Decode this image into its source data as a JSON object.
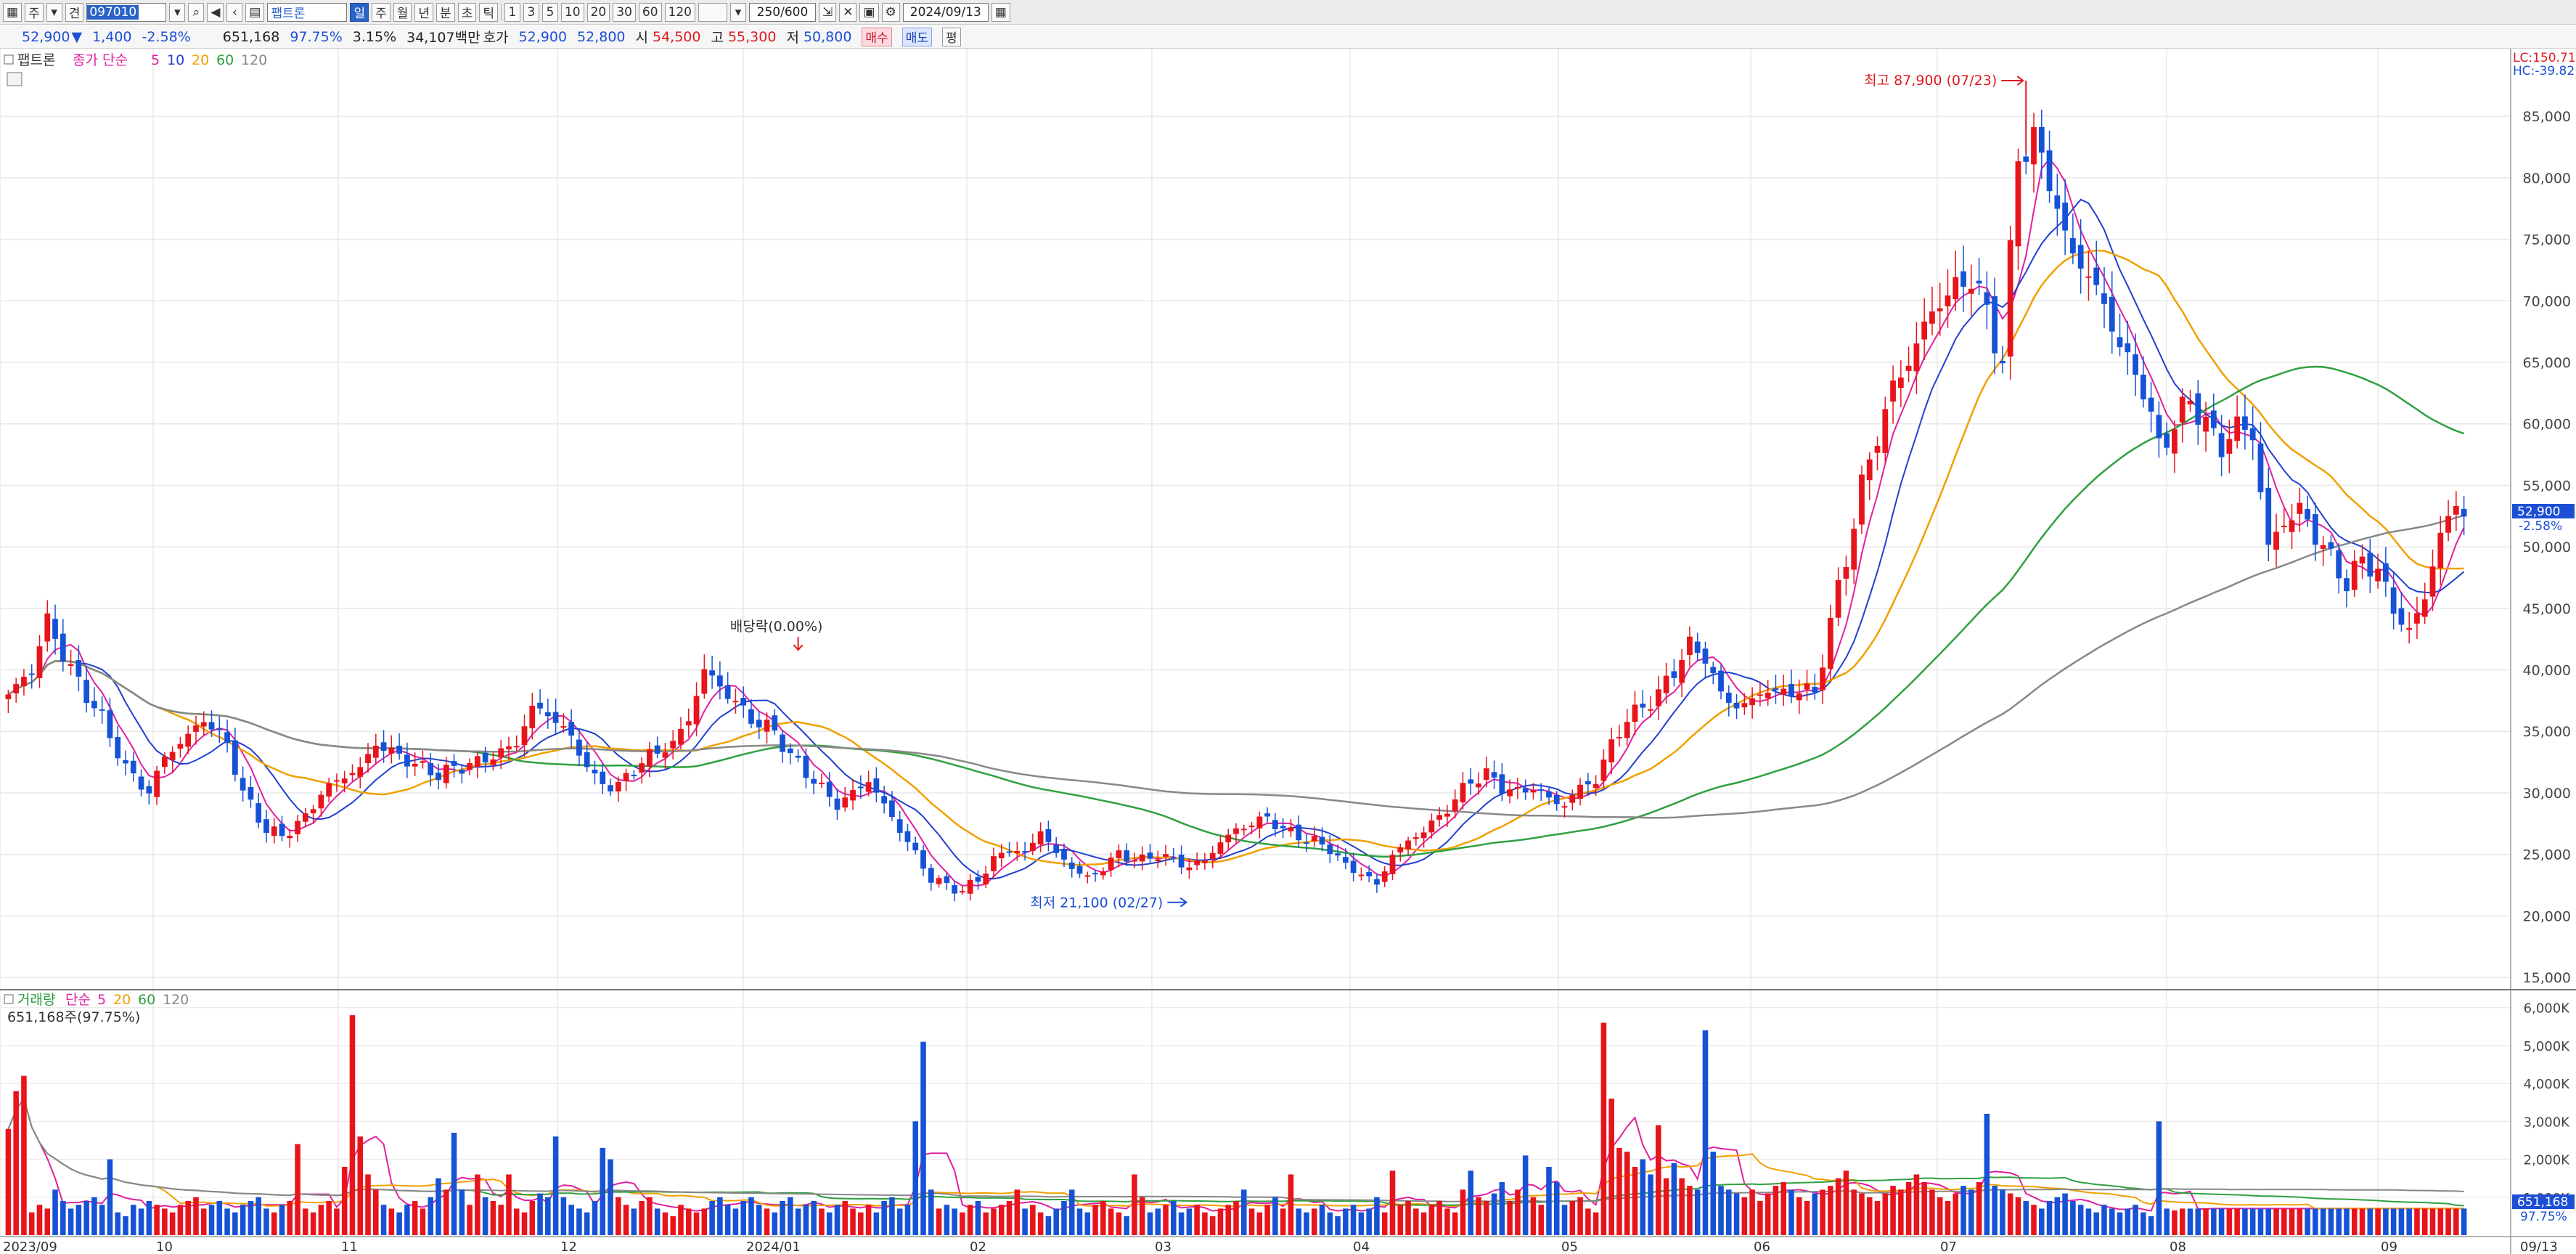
{
  "toolbar": {
    "items_left": [
      "주",
      "견"
    ],
    "code": "097010",
    "name": "팹트론",
    "periods": [
      "일",
      "주",
      "월",
      "년",
      "분",
      "초",
      "틱"
    ],
    "ticks": [
      "1",
      "3",
      "5",
      "10",
      "20",
      "30",
      "60",
      "120"
    ],
    "ratio": "250/600",
    "date": "2024/09/13"
  },
  "info": {
    "price": "52,900",
    "arrow": "▼",
    "change": "1,400",
    "change_pct": "-2.58%",
    "volume": "651,168",
    "vol_ratio": "97.75%",
    "turnover": "3.15%",
    "amount": "34,107백만",
    "quote_label": "호가",
    "ask": "52,900",
    "bid": "52,800",
    "open_label": "시",
    "open": "54,500",
    "high_label": "고",
    "high": "55,300",
    "low_label": "저",
    "low": "50,800",
    "buy_label": "매수",
    "sell_label": "매도",
    "flat_label": "평"
  },
  "chart_data": {
    "type": "candlestick",
    "price_panel": {
      "legend_name": "팹트론",
      "legend_ma_label": "종가 단순",
      "ma_periods": [
        5,
        10,
        20,
        60,
        120
      ],
      "ma_colors": [
        "#e020a0",
        "#2040d0",
        "#f0a000",
        "#30a040",
        "#888888"
      ],
      "y_ticks": [
        15000,
        20000,
        25000,
        30000,
        35000,
        40000,
        45000,
        50000,
        55000,
        60000,
        65000,
        70000,
        75000,
        80000,
        85000
      ],
      "y_tick_labels": [
        "15,000",
        "20,000",
        "25,000",
        "30,000",
        "35,000",
        "40,000",
        "45,000",
        "50,000",
        "55,000",
        "60,000",
        "65,000",
        "70,000",
        "75,000",
        "80,000",
        "85,000"
      ],
      "ylim": [
        14000,
        90500
      ],
      "current_price_label": "52,900",
      "current_pct_label": "-2.58%",
      "lc_label": "LC:150.71",
      "hc_label": "HC:-39.82",
      "annotations": {
        "high": "최고 87,900 (07/23)",
        "low": "최저 21,100 (02/27)",
        "ex_dividend": "배당락(0.00%)"
      }
    },
    "volume_panel": {
      "legend_name": "거래량",
      "legend_ma_label": "단순",
      "ma_periods": [
        5,
        20,
        60,
        120
      ],
      "summary": "651,168주(97.75%)",
      "y_ticks": [
        1000,
        2000,
        3000,
        4000,
        5000,
        6000
      ],
      "y_tick_labels": [
        "1,000K",
        "2,000K",
        "3,000K",
        "4,000K",
        "5,000K",
        "6,000K"
      ],
      "current_label": "651,168",
      "current_pct_label": "97.75%"
    },
    "x_labels": [
      "2023/09",
      "10",
      "11",
      "12",
      "2024/01",
      "02",
      "03",
      "04",
      "05",
      "06",
      "07",
      "08",
      "09"
    ],
    "last_x_label": "09/13",
    "bullish_color": "#e8141c",
    "bearish_color": "#1652d6",
    "price_points": [
      [
        0,
        38000
      ],
      [
        3,
        40000
      ],
      [
        5,
        44000
      ],
      [
        8,
        40000
      ],
      [
        10,
        38000
      ],
      [
        12,
        36000
      ],
      [
        15,
        32000
      ],
      [
        18,
        30000
      ],
      [
        20,
        33000
      ],
      [
        22,
        34000
      ],
      [
        25,
        36000
      ],
      [
        28,
        34000
      ],
      [
        30,
        30000
      ],
      [
        33,
        27000
      ],
      [
        35,
        26500
      ],
      [
        38,
        28000
      ],
      [
        40,
        30000
      ],
      [
        42,
        31000
      ],
      [
        45,
        32000
      ],
      [
        47,
        34000
      ],
      [
        50,
        33000
      ],
      [
        53,
        32000
      ],
      [
        55,
        31500
      ],
      [
        57,
        32000
      ],
      [
        60,
        32500
      ],
      [
        62,
        33000
      ],
      [
        65,
        34000
      ],
      [
        67,
        37000
      ],
      [
        70,
        36000
      ],
      [
        73,
        33500
      ],
      [
        75,
        31000
      ],
      [
        78,
        30500
      ],
      [
        80,
        32000
      ],
      [
        82,
        33000
      ],
      [
        85,
        34000
      ],
      [
        87,
        36000
      ],
      [
        89,
        40000
      ],
      [
        92,
        38000
      ],
      [
        95,
        36000
      ],
      [
        98,
        35000
      ],
      [
        100,
        33000
      ],
      [
        103,
        31000
      ],
      [
        106,
        29000
      ],
      [
        108,
        30000
      ],
      [
        110,
        31000
      ],
      [
        112,
        29000
      ],
      [
        114,
        27000
      ],
      [
        116,
        25000
      ],
      [
        118,
        23000
      ],
      [
        120,
        22500
      ],
      [
        122,
        22000
      ],
      [
        124,
        23000
      ],
      [
        126,
        24500
      ],
      [
        128,
        25500
      ],
      [
        130,
        25000
      ],
      [
        132,
        27000
      ],
      [
        134,
        25000
      ],
      [
        136,
        24000
      ],
      [
        138,
        23000
      ],
      [
        140,
        24000
      ],
      [
        142,
        25000
      ],
      [
        145,
        24500
      ],
      [
        147,
        25000
      ],
      [
        149,
        24500
      ],
      [
        151,
        24000
      ],
      [
        153,
        24500
      ],
      [
        155,
        26000
      ],
      [
        157,
        27000
      ],
      [
        159,
        27500
      ],
      [
        161,
        28000
      ],
      [
        163,
        27000
      ],
      [
        165,
        26500
      ],
      [
        167,
        26000
      ],
      [
        169,
        25500
      ],
      [
        171,
        24000
      ],
      [
        173,
        23500
      ],
      [
        175,
        22500
      ],
      [
        177,
        25000
      ],
      [
        179,
        26000
      ],
      [
        181,
        27000
      ],
      [
        183,
        28000
      ],
      [
        185,
        29500
      ],
      [
        187,
        31000
      ],
      [
        189,
        31500
      ],
      [
        191,
        30500
      ],
      [
        193,
        30000
      ],
      [
        195,
        30500
      ],
      [
        197,
        29500
      ],
      [
        199,
        29000
      ],
      [
        201,
        30500
      ],
      [
        203,
        31000
      ],
      [
        205,
        34000
      ],
      [
        207,
        36000
      ],
      [
        209,
        37000
      ],
      [
        211,
        38000
      ],
      [
        213,
        40000
      ],
      [
        215,
        42000
      ],
      [
        217,
        41000
      ],
      [
        219,
        38000
      ],
      [
        221,
        37000
      ],
      [
        223,
        37500
      ],
      [
        225,
        38500
      ],
      [
        227,
        38000
      ],
      [
        229,
        38500
      ],
      [
        231,
        38000
      ],
      [
        233,
        44000
      ],
      [
        235,
        49000
      ],
      [
        237,
        55000
      ],
      [
        239,
        59000
      ],
      [
        241,
        63000
      ],
      [
        243,
        65000
      ],
      [
        245,
        68000
      ],
      [
        247,
        70000
      ],
      [
        249,
        71000
      ],
      [
        251,
        72000
      ],
      [
        253,
        69000
      ],
      [
        255,
        65000
      ],
      [
        257,
        82000
      ],
      [
        259,
        83000
      ],
      [
        261,
        80000
      ],
      [
        263,
        75000
      ],
      [
        265,
        73000
      ],
      [
        267,
        71000
      ],
      [
        269,
        68000
      ],
      [
        271,
        65000
      ],
      [
        273,
        63000
      ],
      [
        275,
        58000
      ],
      [
        277,
        60000
      ],
      [
        279,
        62000
      ],
      [
        281,
        60000
      ],
      [
        283,
        58000
      ],
      [
        285,
        60000
      ],
      [
        287,
        59000
      ],
      [
        289,
        50000
      ],
      [
        291,
        52000
      ],
      [
        293,
        53000
      ],
      [
        295,
        51000
      ],
      [
        297,
        49000
      ],
      [
        299,
        47000
      ],
      [
        301,
        49000
      ],
      [
        303,
        48000
      ],
      [
        305,
        45000
      ],
      [
        307,
        43000
      ],
      [
        309,
        46000
      ],
      [
        311,
        51000
      ],
      [
        313,
        53500
      ],
      [
        314,
        52900
      ]
    ],
    "volume_values": [
      2800,
      3800,
      4200,
      600,
      800,
      700,
      1200,
      900,
      700,
      800,
      900,
      1000,
      800,
      2000,
      600,
      500,
      800,
      700,
      900,
      800,
      700,
      600,
      800,
      900,
      1000,
      700,
      800,
      900,
      700,
      600,
      800,
      900,
      1000,
      700,
      600,
      800,
      900,
      2400,
      700,
      600,
      800,
      900,
      700,
      1800,
      5800,
      2600,
      1600,
      1200,
      800,
      700,
      600,
      800,
      900,
      700,
      1000,
      1500,
      1200,
      2700,
      1200,
      800,
      1600,
      1000,
      900,
      800,
      1600,
      700,
      600,
      900,
      1100,
      1000,
      2600,
      1000,
      800,
      700,
      600,
      900,
      2300,
      2000,
      1000,
      800,
      700,
      900,
      1000,
      700,
      600,
      500,
      800,
      700,
      600,
      700,
      900,
      1000,
      800,
      700,
      900,
      1000,
      800,
      700,
      600,
      900,
      1000,
      700,
      800,
      900,
      700,
      600,
      800,
      900,
      700,
      600,
      800,
      600,
      900,
      1000,
      700,
      800,
      3000,
      5100,
      1200,
      700,
      800,
      700,
      600,
      800,
      900,
      600,
      700,
      800,
      900,
      1200,
      700,
      800,
      600,
      500,
      700,
      900,
      1200,
      700,
      600,
      800,
      900,
      700,
      600,
      500,
      1600,
      1000,
      600,
      700,
      800,
      900,
      600,
      700,
      800,
      600,
      500,
      700,
      800,
      900,
      1200,
      700,
      600,
      800,
      1000,
      700,
      1600,
      700,
      600,
      700,
      800,
      600,
      500,
      700,
      800,
      600,
      700,
      1000,
      600,
      1700,
      800,
      900,
      700,
      600,
      800,
      900,
      700,
      600,
      1200,
      1700,
      1000,
      900,
      1100,
      1400,
      900,
      1200,
      2100,
      1000,
      800,
      1800,
      1400,
      800,
      900,
      1000,
      700,
      600,
      5600,
      3600,
      2300,
      2200,
      1800,
      2000,
      1600,
      2900,
      1500,
      1900,
      1500,
      1300,
      1200,
      5400,
      2200,
      1300,
      1200,
      1100,
      1000,
      1200,
      900,
      1100,
      1300,
      1400,
      1200,
      1000,
      900,
      1100,
      1200,
      1300,
      1500,
      1700,
      1200,
      1100,
      1000,
      900,
      1100,
      1300,
      1200,
      1400,
      1600,
      1400,
      1200,
      1000,
      900,
      1100,
      1300,
      1200,
      1400,
      3200,
      1300,
      1200,
      1100,
      1000,
      900,
      800,
      700,
      900,
      1000,
      1100,
      900,
      800,
      700,
      600,
      800,
      700,
      600,
      700,
      800,
      600,
      500,
      3000,
      700,
      651
    ]
  }
}
